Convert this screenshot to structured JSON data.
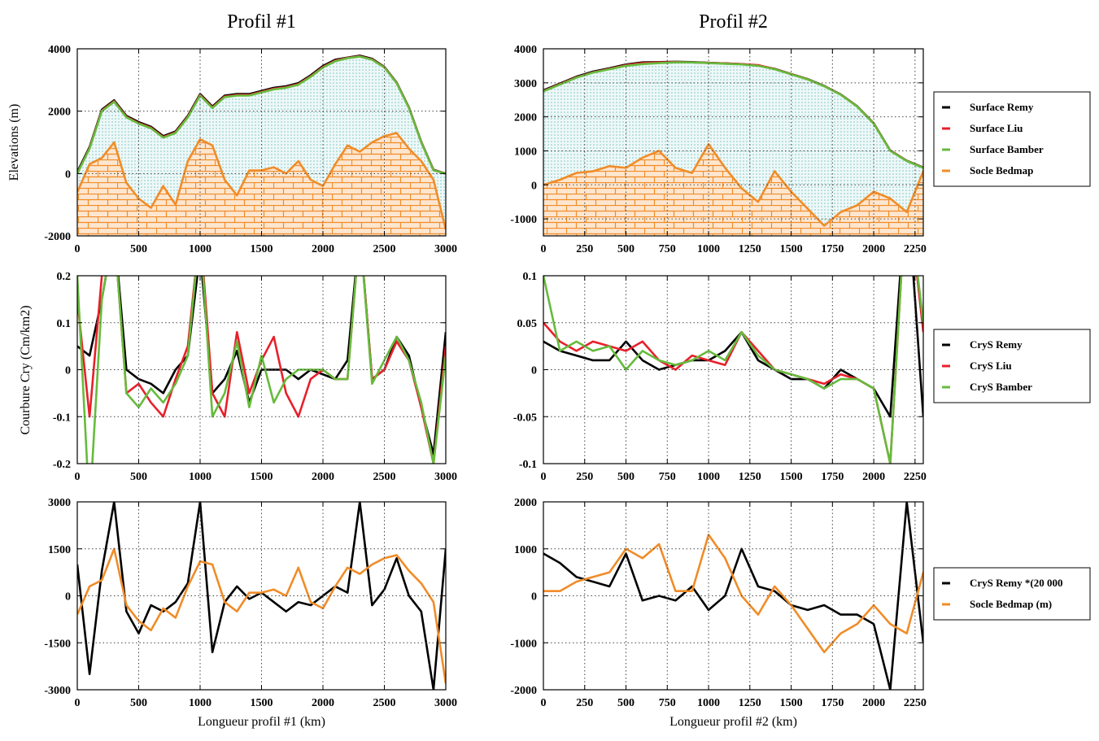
{
  "chart_data": [
    {
      "type": "area",
      "title": "Profil #1",
      "ylabel": "Elevations (m)",
      "x": [
        0,
        100,
        200,
        300,
        400,
        500,
        600,
        700,
        800,
        900,
        1000,
        1100,
        1200,
        1300,
        1400,
        1500,
        1600,
        1700,
        1800,
        1900,
        2000,
        2100,
        2200,
        2300,
        2400,
        2500,
        2600,
        2700,
        2800,
        2900,
        3000
      ],
      "series": [
        {
          "color": "#000000",
          "values": [
            50,
            850,
            2050,
            2350,
            1850,
            1650,
            1500,
            1200,
            1350,
            1850,
            2550,
            2150,
            2500,
            2550,
            2550,
            2650,
            2750,
            2800,
            2900,
            3150,
            3450,
            3650,
            3720,
            3780,
            3680,
            3420,
            2920,
            2120,
            1020,
            120,
            0
          ]
        },
        {
          "color": "#e8202a",
          "values": [
            0,
            820,
            2020,
            2320,
            1820,
            1620,
            1470,
            1170,
            1320,
            1820,
            2520,
            2120,
            2470,
            2520,
            2520,
            2620,
            2720,
            2770,
            2870,
            3120,
            3420,
            3620,
            3710,
            3760,
            3660,
            3410,
            2910,
            2110,
            1010,
            110,
            0
          ]
        },
        {
          "color": "#66bb3c",
          "values": [
            0,
            800,
            2000,
            2300,
            1800,
            1600,
            1450,
            1150,
            1300,
            1800,
            2500,
            2100,
            2450,
            2500,
            2500,
            2600,
            2700,
            2750,
            2850,
            3100,
            3400,
            3600,
            3700,
            3750,
            3650,
            3400,
            2900,
            2100,
            1000,
            100,
            0
          ]
        },
        {
          "color": "#f08c28",
          "values": [
            -600,
            300,
            500,
            1000,
            -300,
            -800,
            -1100,
            -400,
            -1000,
            400,
            1100,
            900,
            -200,
            -700,
            100,
            100,
            200,
            0,
            400,
            -200,
            -400,
            300,
            900,
            700,
            1000,
            1200,
            1300,
            800,
            400,
            -200,
            -1800
          ]
        }
      ],
      "xlim": [
        0,
        3000
      ],
      "xticks": [
        0,
        500,
        1000,
        1500,
        2000,
        2500,
        3000
      ],
      "ylim": [
        -2000,
        4000
      ],
      "yticks": [
        -2000,
        0,
        2000,
        4000
      ],
      "grid": true
    },
    {
      "type": "area",
      "title": "Profil #2",
      "legend": "right",
      "x": [
        0,
        100,
        200,
        300,
        400,
        500,
        600,
        700,
        800,
        900,
        1000,
        1100,
        1200,
        1300,
        1400,
        1500,
        1600,
        1700,
        1800,
        1900,
        2000,
        2100,
        2200,
        2300
      ],
      "series": [
        {
          "name": "Surface Remy",
          "color": "#000000",
          "values": [
            2780,
            2980,
            3180,
            3330,
            3430,
            3540,
            3600,
            3610,
            3620,
            3610,
            3590,
            3570,
            3550,
            3510,
            3410,
            3260,
            3110,
            2910,
            2660,
            2310,
            1810,
            1010,
            710,
            510
          ]
        },
        {
          "name": "Surface Liu",
          "color": "#e8202a",
          "values": [
            2760,
            2960,
            3160,
            3310,
            3410,
            3520,
            3580,
            3600,
            3610,
            3600,
            3585,
            3570,
            3550,
            3520,
            3405,
            3255,
            3105,
            2905,
            2655,
            2305,
            1805,
            1005,
            705,
            505
          ]
        },
        {
          "name": "Surface Bamber",
          "color": "#66bb3c",
          "values": [
            2750,
            2950,
            3150,
            3300,
            3400,
            3500,
            3550,
            3580,
            3600,
            3600,
            3580,
            3560,
            3540,
            3500,
            3400,
            3250,
            3100,
            2900,
            2650,
            2300,
            1800,
            1000,
            700,
            500
          ]
        },
        {
          "name": "Socle Bedmap",
          "color": "#f08c28",
          "values": [
            0,
            150,
            350,
            400,
            550,
            500,
            800,
            1000,
            500,
            350,
            1200,
            500,
            -100,
            -500,
            400,
            -200,
            -700,
            -1200,
            -800,
            -600,
            -200,
            -400,
            -800,
            400
          ]
        }
      ],
      "xlim": [
        0,
        2300
      ],
      "xticks": [
        0,
        250,
        500,
        750,
        1000,
        1250,
        1500,
        1750,
        2000,
        2250
      ],
      "ylim": [
        -1500,
        4000
      ],
      "yticks": [
        -1000,
        0,
        1000,
        2000,
        3000,
        4000
      ],
      "grid": true
    },
    {
      "type": "line",
      "ylabel": "Courbure Cry (Cm/km2)",
      "x": [
        0,
        100,
        200,
        300,
        400,
        500,
        600,
        700,
        800,
        900,
        1000,
        1100,
        1200,
        1300,
        1400,
        1500,
        1600,
        1700,
        1800,
        1900,
        2000,
        2100,
        2200,
        2300,
        2400,
        2500,
        2600,
        2700,
        2800,
        2900,
        3000
      ],
      "series": [
        {
          "color": "#000000",
          "values": [
            0.05,
            0.03,
            0.15,
            0.3,
            0.0,
            -0.02,
            -0.03,
            -0.05,
            0.0,
            0.03,
            0.25,
            -0.05,
            -0.02,
            0.04,
            -0.07,
            0.0,
            0.0,
            0.0,
            -0.02,
            0.0,
            -0.01,
            -0.02,
            0.02,
            0.3,
            -0.02,
            0.0,
            0.07,
            0.03,
            -0.08,
            -0.18,
            0.08
          ]
        },
        {
          "color": "#e8202a",
          "values": [
            0.15,
            -0.1,
            0.2,
            0.3,
            -0.05,
            -0.03,
            -0.07,
            -0.1,
            -0.02,
            0.05,
            0.3,
            -0.05,
            -0.1,
            0.08,
            -0.05,
            0.02,
            0.07,
            -0.05,
            -0.1,
            -0.02,
            0.0,
            -0.02,
            -0.02,
            0.3,
            -0.02,
            0.0,
            0.06,
            0.02,
            -0.08,
            -0.2,
            0.05
          ]
        },
        {
          "color": "#66bb3c",
          "values": [
            0.2,
            -0.3,
            0.15,
            0.3,
            -0.05,
            -0.08,
            -0.04,
            -0.07,
            -0.03,
            0.03,
            0.3,
            -0.1,
            -0.05,
            0.06,
            -0.08,
            0.03,
            -0.07,
            -0.02,
            0.0,
            0.0,
            0.0,
            -0.02,
            -0.02,
            0.3,
            -0.03,
            0.02,
            0.07,
            0.02,
            -0.07,
            -0.2,
            0.03
          ]
        }
      ],
      "xlim": [
        0,
        3000
      ],
      "xticks": [
        0,
        500,
        1000,
        1500,
        2000,
        2500,
        3000
      ],
      "ylim": [
        -0.2,
        0.2
      ],
      "yticks": [
        -0.2,
        -0.1,
        0,
        0.1,
        0.2
      ],
      "grid": true
    },
    {
      "type": "line",
      "legend": "right",
      "x": [
        0,
        100,
        200,
        300,
        400,
        500,
        600,
        700,
        800,
        900,
        1000,
        1100,
        1200,
        1300,
        1400,
        1500,
        1600,
        1700,
        1800,
        1900,
        2000,
        2100,
        2200,
        2300
      ],
      "series": [
        {
          "name": "CryS Remy",
          "color": "#000000",
          "values": [
            0.03,
            0.02,
            0.015,
            0.01,
            0.01,
            0.03,
            0.01,
            0.0,
            0.005,
            0.01,
            0.01,
            0.02,
            0.04,
            0.01,
            0.0,
            -0.01,
            -0.01,
            -0.02,
            0.0,
            -0.01,
            -0.02,
            -0.05,
            0.2,
            -0.05
          ]
        },
        {
          "name": "CryS Liu",
          "color": "#e8202a",
          "values": [
            0.05,
            0.03,
            0.02,
            0.03,
            0.025,
            0.02,
            0.03,
            0.01,
            0.0,
            0.015,
            0.01,
            0.005,
            0.04,
            0.02,
            0.0,
            -0.005,
            -0.01,
            -0.015,
            -0.005,
            -0.01,
            -0.02,
            -0.1,
            0.2,
            0.04
          ]
        },
        {
          "name": "CryS Bamber",
          "color": "#66bb3c",
          "values": [
            0.1,
            0.02,
            0.03,
            0.02,
            0.025,
            0.0,
            0.02,
            0.01,
            0.005,
            0.01,
            0.02,
            0.01,
            0.04,
            0.015,
            0.0,
            -0.005,
            -0.01,
            -0.02,
            -0.01,
            -0.01,
            -0.02,
            -0.1,
            0.2,
            0.05
          ]
        }
      ],
      "xlim": [
        0,
        2300
      ],
      "xticks": [
        0,
        250,
        500,
        750,
        1000,
        1250,
        1500,
        1750,
        2000,
        2250
      ],
      "ylim": [
        -0.1,
        0.1
      ],
      "yticks": [
        -0.1,
        -0.05,
        0,
        0.05,
        0.1
      ],
      "grid": true
    },
    {
      "type": "line",
      "xlabel": "Longueur profil #1 (km)",
      "x": [
        0,
        100,
        200,
        300,
        400,
        500,
        600,
        700,
        800,
        900,
        1000,
        1100,
        1200,
        1300,
        1400,
        1500,
        1600,
        1700,
        1800,
        1900,
        2000,
        2100,
        2200,
        2300,
        2400,
        2500,
        2600,
        2700,
        2800,
        2900,
        3000
      ],
      "series": [
        {
          "color": "#000000",
          "values": [
            1000,
            -2500,
            800,
            3000,
            -500,
            -1200,
            -300,
            -500,
            -200,
            400,
            3000,
            -1800,
            -200,
            300,
            -100,
            100,
            -200,
            -500,
            -200,
            -300,
            0,
            300,
            100,
            3000,
            -300,
            200,
            1200,
            0,
            -500,
            -3000,
            1500
          ]
        },
        {
          "color": "#f08c28",
          "values": [
            -600,
            300,
            500,
            1500,
            -300,
            -800,
            -1100,
            -400,
            -700,
            300,
            1100,
            1000,
            -200,
            -500,
            100,
            100,
            200,
            0,
            900,
            -200,
            -400,
            300,
            900,
            700,
            1000,
            1200,
            1300,
            800,
            400,
            -200,
            -2800
          ]
        }
      ],
      "xlim": [
        0,
        3000
      ],
      "xticks": [
        0,
        500,
        1000,
        1500,
        2000,
        2500,
        3000
      ],
      "ylim": [
        -3000,
        3000
      ],
      "yticks": [
        -3000,
        -1500,
        0,
        1500,
        3000
      ],
      "grid": true
    },
    {
      "type": "line",
      "xlabel": "Longueur profil #2 (km)",
      "legend": "right",
      "x": [
        0,
        100,
        200,
        300,
        400,
        500,
        600,
        700,
        800,
        900,
        1000,
        1100,
        1200,
        1300,
        1400,
        1500,
        1600,
        1700,
        1800,
        1900,
        2000,
        2100,
        2200,
        2300
      ],
      "series": [
        {
          "name": "CryS Remy *(20 000",
          "color": "#000000",
          "values": [
            900,
            700,
            400,
            300,
            200,
            900,
            -100,
            0,
            -100,
            200,
            -300,
            0,
            1000,
            200,
            100,
            -200,
            -300,
            -200,
            -400,
            -400,
            -600,
            -2000,
            2000,
            -1000
          ]
        },
        {
          "name": "Socle Bedmap (m)",
          "color": "#f08c28",
          "values": [
            100,
            100,
            300,
            400,
            500,
            1000,
            800,
            1100,
            100,
            100,
            1300,
            800,
            0,
            -400,
            200,
            -200,
            -700,
            -1200,
            -800,
            -600,
            -200,
            -600,
            -800,
            500
          ]
        }
      ],
      "xlim": [
        0,
        2300
      ],
      "xticks": [
        0,
        250,
        500,
        750,
        1000,
        1250,
        1500,
        1750,
        2000,
        2250
      ],
      "ylim": [
        -2000,
        2000
      ],
      "yticks": [
        -2000,
        -1000,
        0,
        1000,
        2000
      ],
      "grid": true
    }
  ]
}
